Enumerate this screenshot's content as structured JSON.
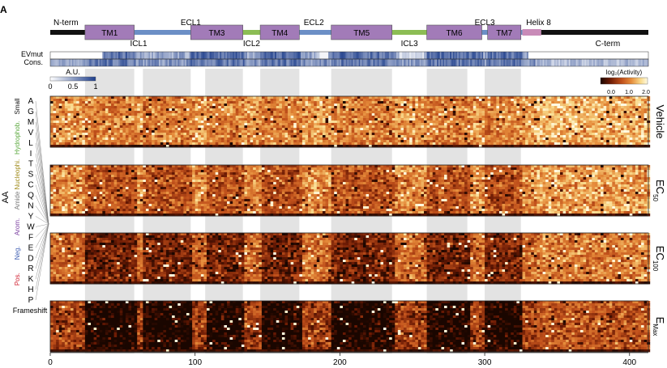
{
  "panel_letter": "A",
  "topology": {
    "nterm_label": "N-term",
    "cterm_label": "C-term",
    "tm_segments": [
      {
        "label": "TM1",
        "start": 24,
        "end": 58
      },
      {
        "label": "TM3",
        "start": 97,
        "end": 133
      },
      {
        "label": "TM4",
        "start": 145,
        "end": 172
      },
      {
        "label": "TM5",
        "start": 194,
        "end": 236
      },
      {
        "label": "TM6",
        "start": 260,
        "end": 298
      },
      {
        "label": "TM7",
        "start": 302,
        "end": 325
      }
    ],
    "helix8": {
      "label": "Helix 8",
      "start": 326,
      "end": 339
    },
    "loops": [
      {
        "label": "ICL1",
        "position": 61,
        "row": "below",
        "kind": "intra"
      },
      {
        "label": "ECL1",
        "position": 97,
        "row": "above",
        "kind": "extra"
      },
      {
        "label": "ICL2",
        "position": 139,
        "row": "below",
        "kind": "intra"
      },
      {
        "label": "ECL2",
        "position": 182,
        "row": "above",
        "kind": "extra"
      },
      {
        "label": "ICL3",
        "position": 248,
        "row": "below",
        "kind": "intra"
      },
      {
        "label": "ECL3",
        "position": 300,
        "row": "above",
        "kind": "extra"
      }
    ],
    "colors": {
      "tm": "#a27bb8",
      "extra": "#8cbd54",
      "intra": "#6c8fc6",
      "termini": "#111111",
      "helix8": "#c98bb8"
    }
  },
  "tracks": {
    "evmut_label": "EVmut",
    "cons_label": "Cons.",
    "legend_title": "A.U.",
    "legend_ticks": [
      "0",
      "0.5",
      "1"
    ],
    "colors": [
      "#ffffff",
      "#1f3f8c"
    ]
  },
  "activity_legend": {
    "title": "log₂(Activity)",
    "ticks": [
      "0.0",
      "1.0",
      "2.0"
    ],
    "colors": [
      "#1a0600",
      "#6b1a04",
      "#c0501b",
      "#e58b3a",
      "#f9d98a",
      "#fffbe4"
    ]
  },
  "aa_axis": {
    "title": "AA",
    "residues": [
      "A",
      "G",
      "M",
      "V",
      "L",
      "I",
      "T",
      "S",
      "C",
      "Q",
      "N",
      "Y",
      "W",
      "F",
      "E",
      "D",
      "R",
      "K",
      "H",
      "P"
    ],
    "frameshift_label": "Frameshift",
    "groups": [
      {
        "label": "Small",
        "color": "#111111",
        "first": 0,
        "last": 1
      },
      {
        "label": "Hydrophob.",
        "color": "#5aa83c",
        "first": 2,
        "last": 5
      },
      {
        "label": "Nucleophi.",
        "color": "#a08b1a",
        "first": 6,
        "last": 8
      },
      {
        "label": "Amide",
        "color": "#7a7a7a",
        "first": 9,
        "last": 10
      },
      {
        "label": "Arom.",
        "color": "#7b3fa0",
        "first": 11,
        "last": 13
      },
      {
        "label": "Neg.",
        "color": "#3a5ab0",
        "first": 14,
        "last": 15
      },
      {
        "label": "Pos.",
        "color": "#d02030",
        "first": 16,
        "last": 18
      }
    ]
  },
  "chart_data": {
    "type": "heatmap",
    "x_label": "",
    "xlim": [
      0,
      413
    ],
    "x_ticks": [
      0,
      100,
      200,
      300,
      400
    ],
    "positions": 413,
    "rows_per_panel": 21,
    "value_range": [
      0.0,
      2.0
    ],
    "value_label": "log₂(Activity)",
    "panels": [
      {
        "condition": "Vehicle",
        "subscript": "",
        "mean_activity": 1.35
      },
      {
        "condition": "EC",
        "subscript": "50",
        "mean_activity": 1.25
      },
      {
        "condition": "EC",
        "subscript": "100",
        "mean_activity": 1.05
      },
      {
        "condition": "E",
        "subscript": "Max",
        "mean_activity": 0.75
      }
    ],
    "shaded_regions": [
      [
        24,
        58
      ],
      [
        64,
        97
      ],
      [
        107,
        133
      ],
      [
        145,
        172
      ],
      [
        194,
        236
      ],
      [
        260,
        288
      ],
      [
        300,
        325
      ]
    ]
  }
}
